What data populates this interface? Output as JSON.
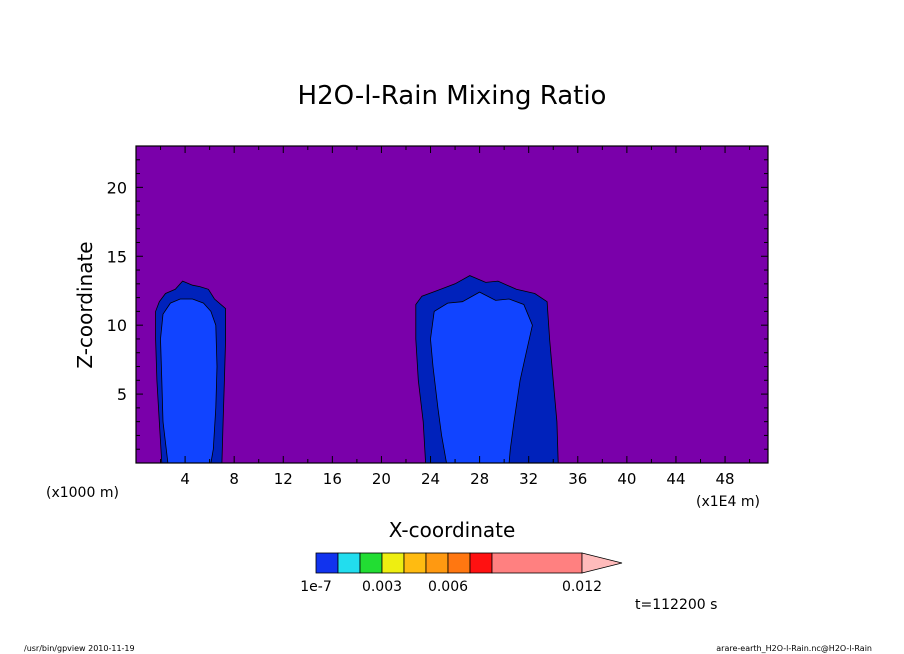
{
  "chart_data": {
    "type": "contour",
    "title": "H2O-l-Rain Mixing Ratio",
    "xlabel": "X-coordinate",
    "ylabel": "Z-coordinate",
    "x_unit_left": "(x1000 m)",
    "x_unit_right": "(x1E4 m)",
    "xlim": [
      0,
      51.5
    ],
    "ylim": [
      0,
      23
    ],
    "x_ticks": [
      4,
      8,
      12,
      16,
      20,
      24,
      28,
      32,
      36,
      40,
      44,
      48
    ],
    "y_ticks": [
      5,
      10,
      15,
      20
    ],
    "background_color": "#7a00aa",
    "cells": [
      {
        "name": "left cell",
        "outer_color": "#0022bb",
        "inner_color": "#1144ff",
        "outer": [
          [
            2.1,
            0
          ],
          [
            1.9,
            3
          ],
          [
            1.7,
            6
          ],
          [
            1.6,
            9
          ],
          [
            1.6,
            11
          ],
          [
            1.9,
            11.7
          ],
          [
            2.4,
            12.3
          ],
          [
            3.2,
            12.6
          ],
          [
            3.8,
            13.2
          ],
          [
            4.6,
            12.9
          ],
          [
            5.2,
            12.8
          ],
          [
            5.9,
            12.6
          ],
          [
            6.4,
            11.9
          ],
          [
            7.3,
            11.2
          ],
          [
            7.3,
            9
          ],
          [
            7.2,
            6
          ],
          [
            7.1,
            3
          ],
          [
            7.0,
            0
          ]
        ],
        "inner": [
          [
            2.6,
            0
          ],
          [
            2.2,
            3
          ],
          [
            2.1,
            6
          ],
          [
            2.0,
            9
          ],
          [
            2.2,
            10.8
          ],
          [
            2.8,
            11.6
          ],
          [
            3.6,
            11.9
          ],
          [
            4.6,
            11.9
          ],
          [
            5.5,
            11.6
          ],
          [
            6.1,
            11
          ],
          [
            6.5,
            10
          ],
          [
            6.6,
            7
          ],
          [
            6.5,
            4
          ],
          [
            6.3,
            1
          ],
          [
            6.1,
            0
          ]
        ]
      },
      {
        "name": "right cell",
        "outer_color": "#0022bb",
        "inner_color": "#1144ff",
        "outer": [
          [
            23.6,
            0
          ],
          [
            23.4,
            3
          ],
          [
            23.0,
            6
          ],
          [
            22.8,
            9
          ],
          [
            22.8,
            11.5
          ],
          [
            23.3,
            12.1
          ],
          [
            24.5,
            12.5
          ],
          [
            26,
            13
          ],
          [
            27.2,
            13.6
          ],
          [
            28.5,
            13.1
          ],
          [
            29.5,
            13.2
          ],
          [
            31,
            12.6
          ],
          [
            32.5,
            12.3
          ],
          [
            33.5,
            11.7
          ],
          [
            33.7,
            9
          ],
          [
            34,
            6
          ],
          [
            34.3,
            3
          ],
          [
            34.4,
            0
          ]
        ],
        "inner": [
          [
            25.3,
            0
          ],
          [
            24.9,
            2
          ],
          [
            24.6,
            4
          ],
          [
            24.2,
            7
          ],
          [
            24,
            9
          ],
          [
            24.3,
            11
          ],
          [
            25.4,
            11.6
          ],
          [
            26.6,
            11.7
          ],
          [
            28,
            12.4
          ],
          [
            29.3,
            11.8
          ],
          [
            30.4,
            11.9
          ],
          [
            31.6,
            11.5
          ],
          [
            32.3,
            10
          ],
          [
            31.8,
            8
          ],
          [
            31.3,
            6
          ],
          [
            30.8,
            3
          ],
          [
            30.5,
            1
          ],
          [
            30.4,
            0
          ]
        ]
      }
    ],
    "colorbar": {
      "colors": [
        "#1133ee",
        "#22ddee",
        "#22dd33",
        "#eeee11",
        "#ffbb11",
        "#ff9911",
        "#ff7711",
        "#ff1111",
        "#ff8080"
      ],
      "tick_labels": [
        "1e-7",
        "0.003",
        "0.006",
        "0.012"
      ],
      "extend_arrow_color": "#ffbbbb"
    }
  },
  "annotations": {
    "time": "t=112200 s",
    "footer_left": "/usr/bin/gpview  2010-11-19",
    "footer_right": "arare-earth_H2O-l-Rain.nc@H2O-l-Rain"
  }
}
